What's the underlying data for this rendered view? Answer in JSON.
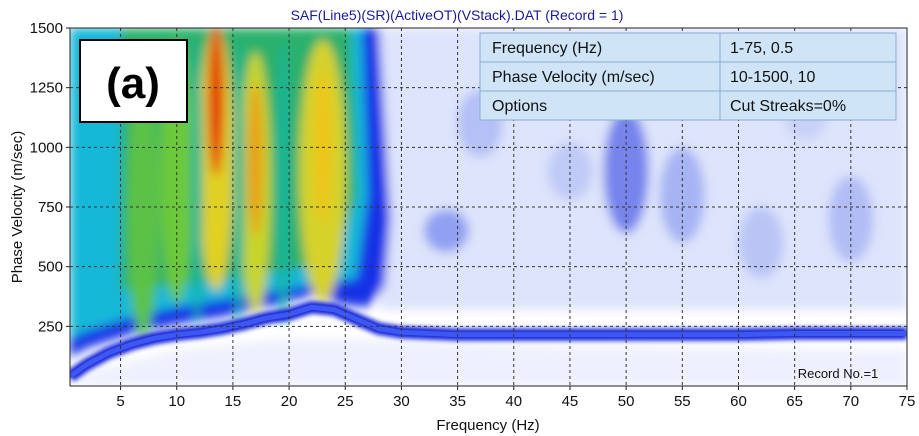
{
  "chart_data": {
    "type": "heatmap",
    "title": "SAF(Line5)(SR)(ActiveOT)(VStack).DAT (Record = 1)",
    "xlabel": "Frequency (Hz)",
    "ylabel": "Phase Velocity (m/sec)",
    "xlim": [
      0.5,
      75
    ],
    "ylim": [
      0,
      1500
    ],
    "x_ticks": [
      5,
      10,
      15,
      20,
      25,
      30,
      35,
      40,
      45,
      50,
      55,
      60,
      65,
      70,
      75
    ],
    "y_ticks": [
      250,
      500,
      750,
      1000,
      1250,
      1500
    ],
    "grid": true,
    "panel_label": "(a)",
    "record_note": "Record No.=1",
    "colors": {
      "title": "#1a1a9a",
      "table_fill": "#cfe4f7",
      "table_border": "#8aaccd"
    },
    "dispersion_curve": {
      "x": [
        0.5,
        2,
        4,
        6,
        8,
        10,
        12,
        14,
        16,
        18,
        20,
        22,
        24,
        26,
        28,
        30,
        35,
        40,
        45,
        50,
        55,
        60,
        65,
        70,
        75
      ],
      "y": [
        40,
        90,
        140,
        175,
        200,
        215,
        225,
        240,
        260,
        285,
        300,
        330,
        320,
        280,
        240,
        225,
        215,
        215,
        215,
        215,
        215,
        215,
        220,
        220,
        220
      ]
    },
    "energy_peaks": [
      {
        "x": 13.5,
        "y": 1200
      },
      {
        "x": 17,
        "y": 950
      },
      {
        "x": 23,
        "y": 1000
      }
    ],
    "parameter_table": [
      {
        "param": "Frequency (Hz)",
        "value": "1-75, 0.5"
      },
      {
        "param": "Phase Velocity (m/sec)",
        "value": "10-1500, 10"
      },
      {
        "param": "Options",
        "value": "Cut Streaks=0%"
      }
    ]
  }
}
